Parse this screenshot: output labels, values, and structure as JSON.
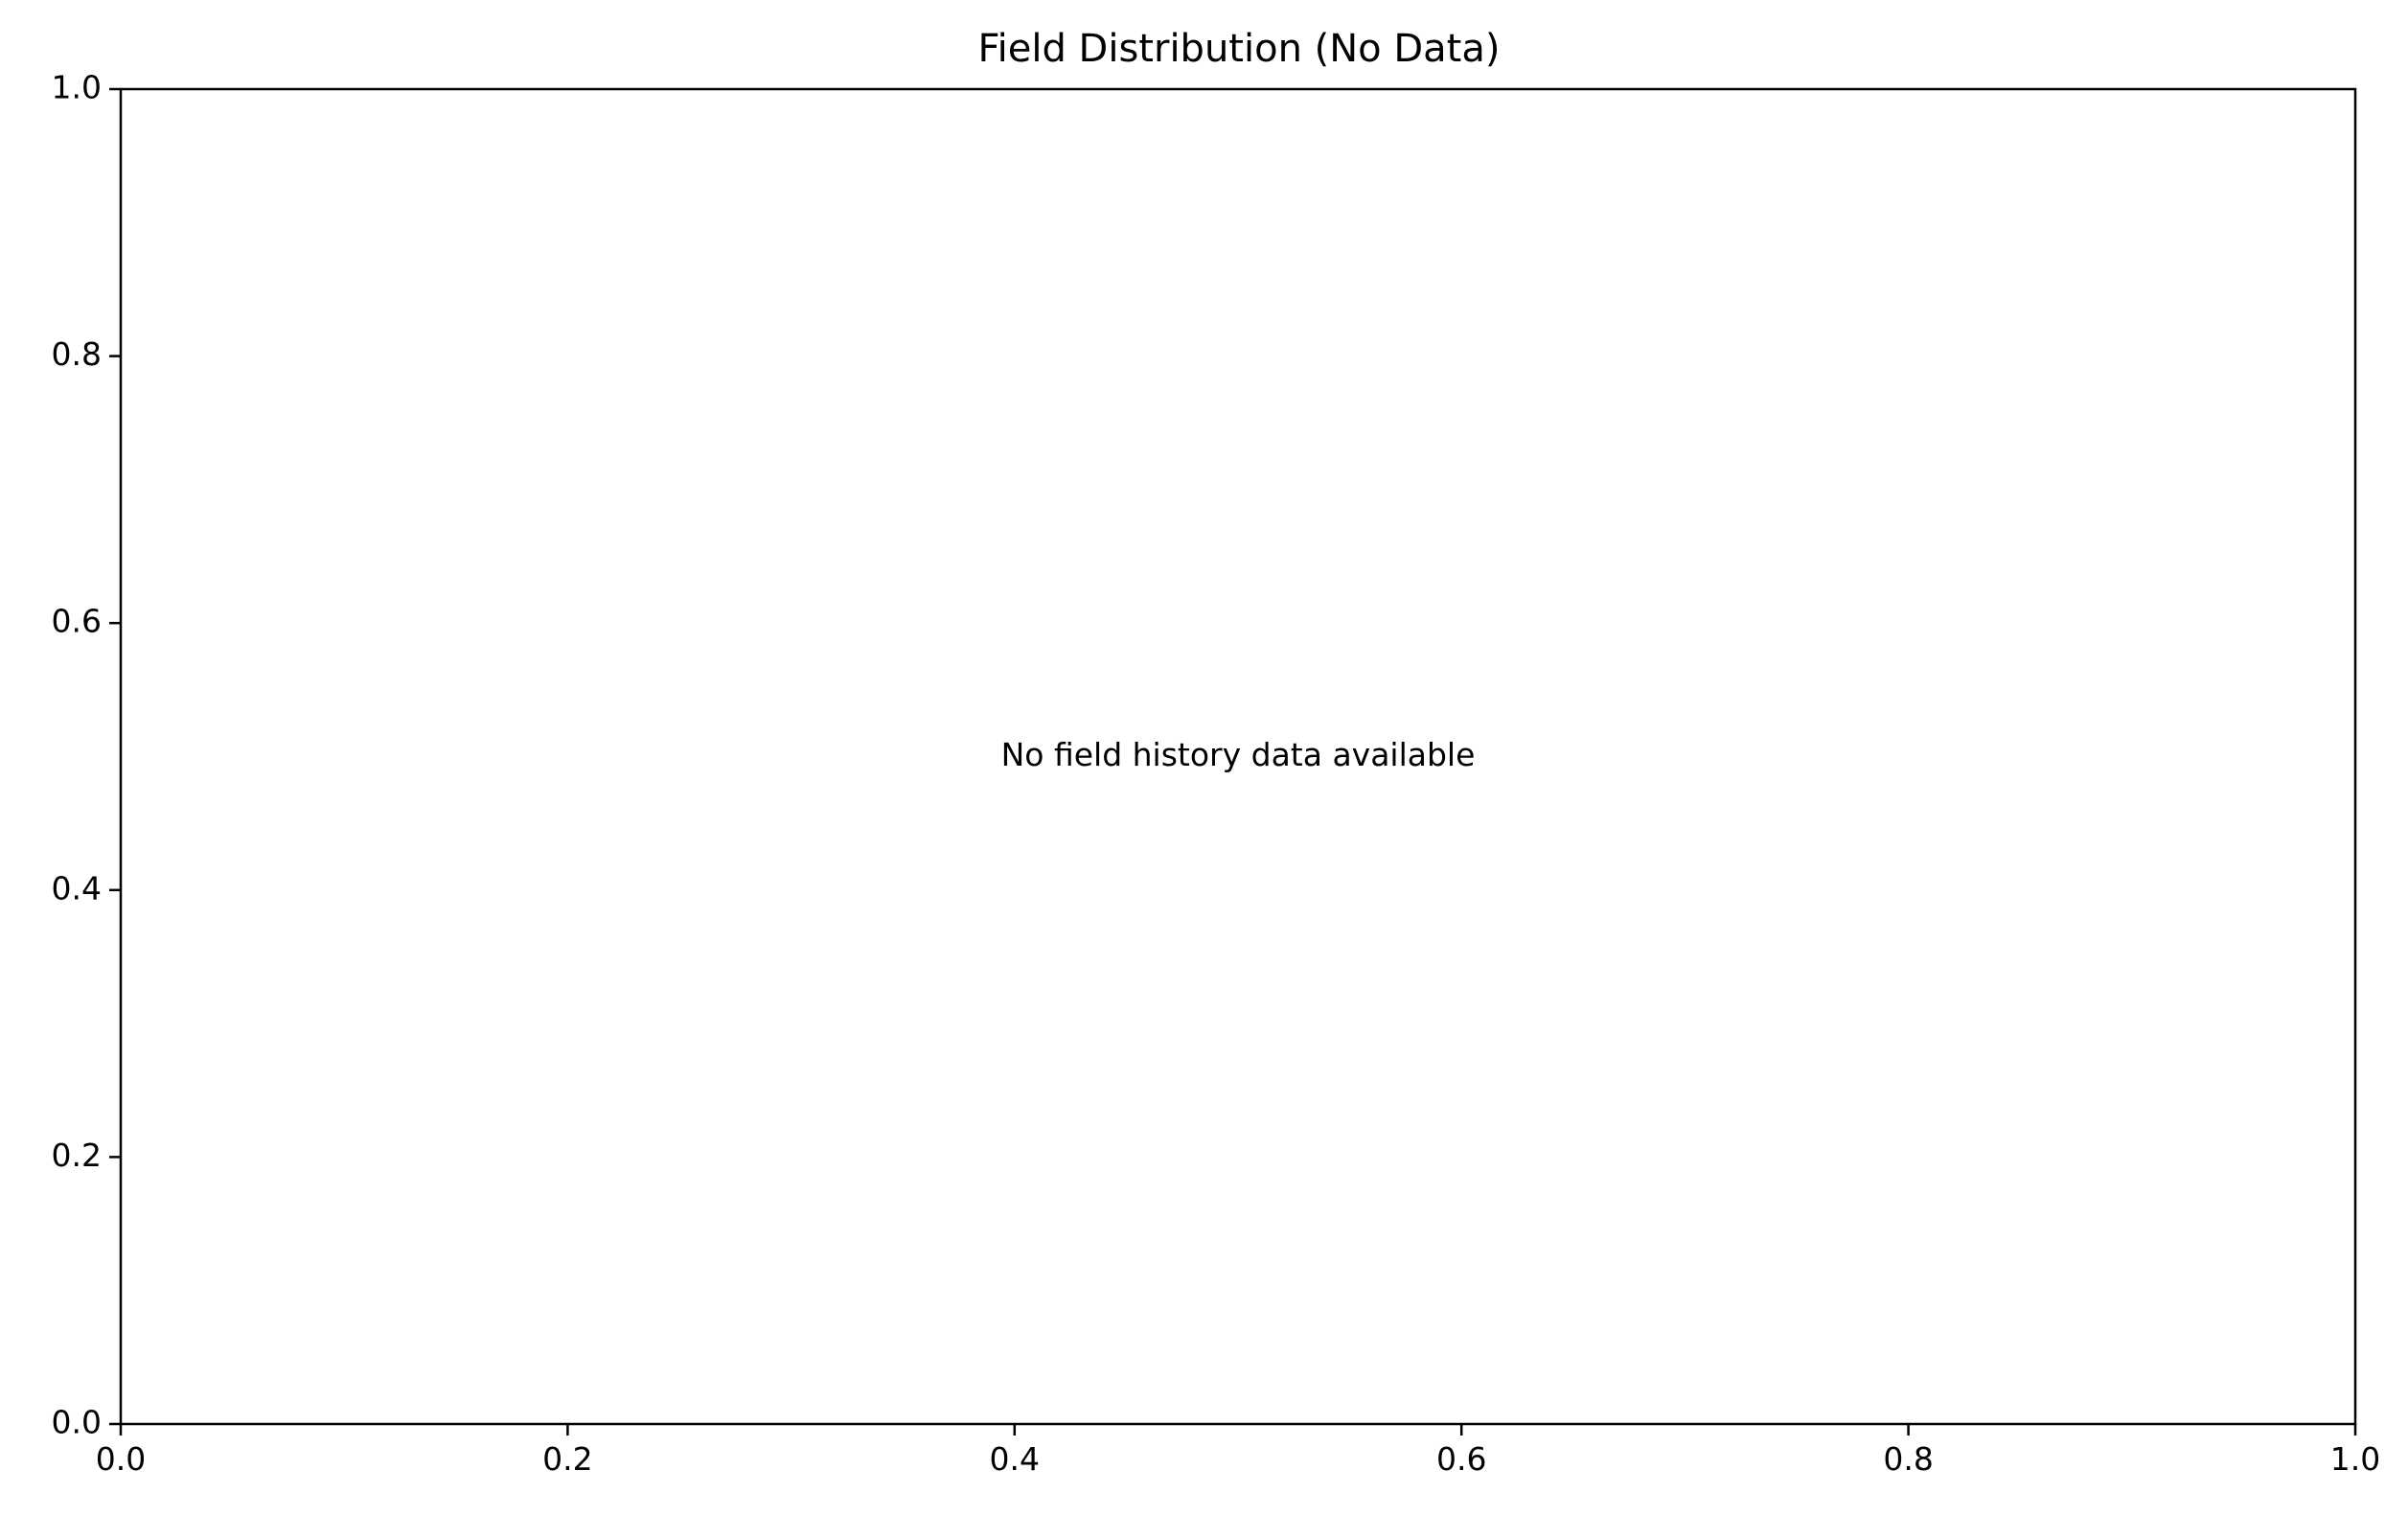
{
  "chart_data": {
    "type": "scatter",
    "title": "Field Distribution (No Data)",
    "xlabel": "",
    "ylabel": "",
    "xlim": [
      0.0,
      1.0
    ],
    "ylim": [
      0.0,
      1.0
    ],
    "x_ticks": [
      0.0,
      0.2,
      0.4,
      0.6,
      0.8,
      1.0
    ],
    "y_ticks": [
      0.0,
      0.2,
      0.4,
      0.6,
      0.8,
      1.0
    ],
    "x_tick_labels": [
      "0.0",
      "0.2",
      "0.4",
      "0.6",
      "0.8",
      "1.0"
    ],
    "y_tick_labels": [
      "0.0",
      "0.2",
      "0.4",
      "0.6",
      "0.8",
      "1.0"
    ],
    "grid": false,
    "series": [],
    "annotations": [
      {
        "text": "No field history data available",
        "x": 0.5,
        "y": 0.5
      }
    ]
  },
  "colors": {
    "axis": "#000000",
    "background": "#ffffff"
  }
}
